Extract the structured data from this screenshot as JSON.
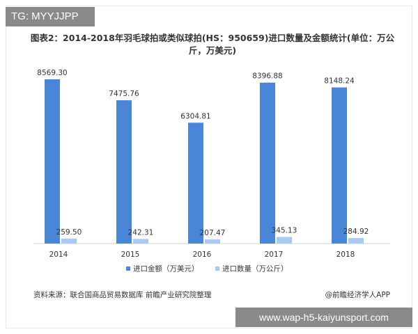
{
  "tg_badge": "TG: MYYJJPP",
  "url_badge": "www.wap-h5-kaiyunsport.com",
  "source": "资料来源：联合国商品贸易数据库 前瞻产业研究院整理",
  "credit": "@前瞻经济学人APP",
  "colors": {
    "amount": "#4a86d8",
    "quantity": "#a9c9ee"
  },
  "chart_data": {
    "type": "bar",
    "title": "图表2：2014-2018年羽毛球拍或类似球拍(HS：950659)进口数量及金额统计(单位：万公斤，万美元)",
    "categories": [
      "2014",
      "2015",
      "2016",
      "2017",
      "2018"
    ],
    "series": [
      {
        "name": "进口金额（万美元）",
        "values": [
          8569.3,
          7475.76,
          6304.81,
          8396.88,
          8148.24
        ],
        "labels": [
          "8569.30",
          "7475.76",
          "6304.81",
          "8396.88",
          "8148.24"
        ]
      },
      {
        "name": "进口数量（万公斤）",
        "values": [
          259.5,
          242.31,
          207.47,
          345.13,
          284.92
        ],
        "labels": [
          "259.50",
          "242.31",
          "207.47",
          "345.13",
          "284.92"
        ]
      }
    ],
    "ylim": [
      0,
      8569.3
    ],
    "grid": false,
    "legend": "bottom"
  }
}
